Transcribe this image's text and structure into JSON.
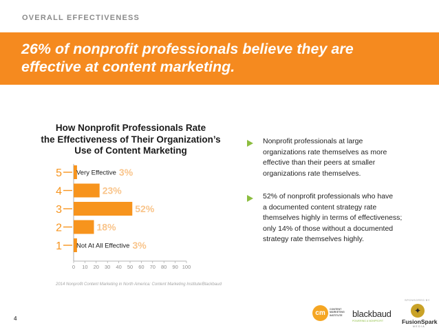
{
  "section_label": "OVERALL EFFECTIVENESS",
  "headline": {
    "lines": [
      "26% of nonprofit professionals believe they are",
      "effective at content marketing."
    ]
  },
  "chart_title": {
    "lines": [
      "How Nonprofit Professionals Rate",
      "the Effectiveness of Their Organization’s",
      "Use of Content Marketing"
    ]
  },
  "chart_data": {
    "type": "bar",
    "orientation": "horizontal",
    "title": "How Nonprofit Professionals Rate the Effectiveness of Their Organization’s Use of Content Marketing",
    "categories": [
      "5",
      "4",
      "3",
      "2",
      "1"
    ],
    "category_labels": [
      "Very Effective",
      "",
      "",
      "",
      "Not At All Effective"
    ],
    "values": [
      3,
      23,
      52,
      18,
      3
    ],
    "value_labels": [
      "3%",
      "23%",
      "52%",
      "18%",
      "3%"
    ],
    "xlim": [
      0,
      100
    ],
    "x_ticks": [
      0,
      10,
      20,
      30,
      40,
      50,
      60,
      70,
      80,
      90,
      100
    ],
    "grid": false,
    "legend": "none",
    "colors": {
      "bar": "#f7941d",
      "value_label": "#f9c48a",
      "rating_label": "#f7941d",
      "axis": "#9a9a9a",
      "tick_label": "#8c8c8c"
    }
  },
  "source": "2014 Nonprofit Content Marketing in North America: Content Marketing Institute/Blackbaud",
  "bullets": [
    {
      "lines": [
        "Nonprofit professionals at large",
        "organizations rate themselves as more",
        "effective than their peers at smaller",
        "organizations rate themselves."
      ]
    },
    {
      "lines": [
        "52% of nonprofit professionals who have",
        "a documented content strategy rate",
        "themselves highly in terms of effectiveness;",
        "only 14% of those without a documented",
        "strategy rate themselves highly."
      ]
    }
  ],
  "page_number": "4",
  "footer": {
    "sponsor_label": "SPONSORED BY",
    "cmi": {
      "mark": "cm",
      "lines": [
        "CONTENT",
        "MARKETING",
        "INSTITUTE"
      ]
    },
    "blackbaud": {
      "word": "blackbaud",
      "tagline": "POWERING A NONPROFIT"
    },
    "fusionspark": {
      "word": "FusionSpark",
      "sub": "MEDIA"
    }
  },
  "colors": {
    "accent": "#f58a1f",
    "headline_text": "#ffffff",
    "bullet_arrow": "#8cbd3f",
    "section_label": "#8a8a8a"
  },
  "icons": {
    "bullet": "green-triangle-arrow",
    "cmi_logo": "orange-circle-cm-mark",
    "fusionspark_logo": "gold-circle-spark-mark"
  }
}
